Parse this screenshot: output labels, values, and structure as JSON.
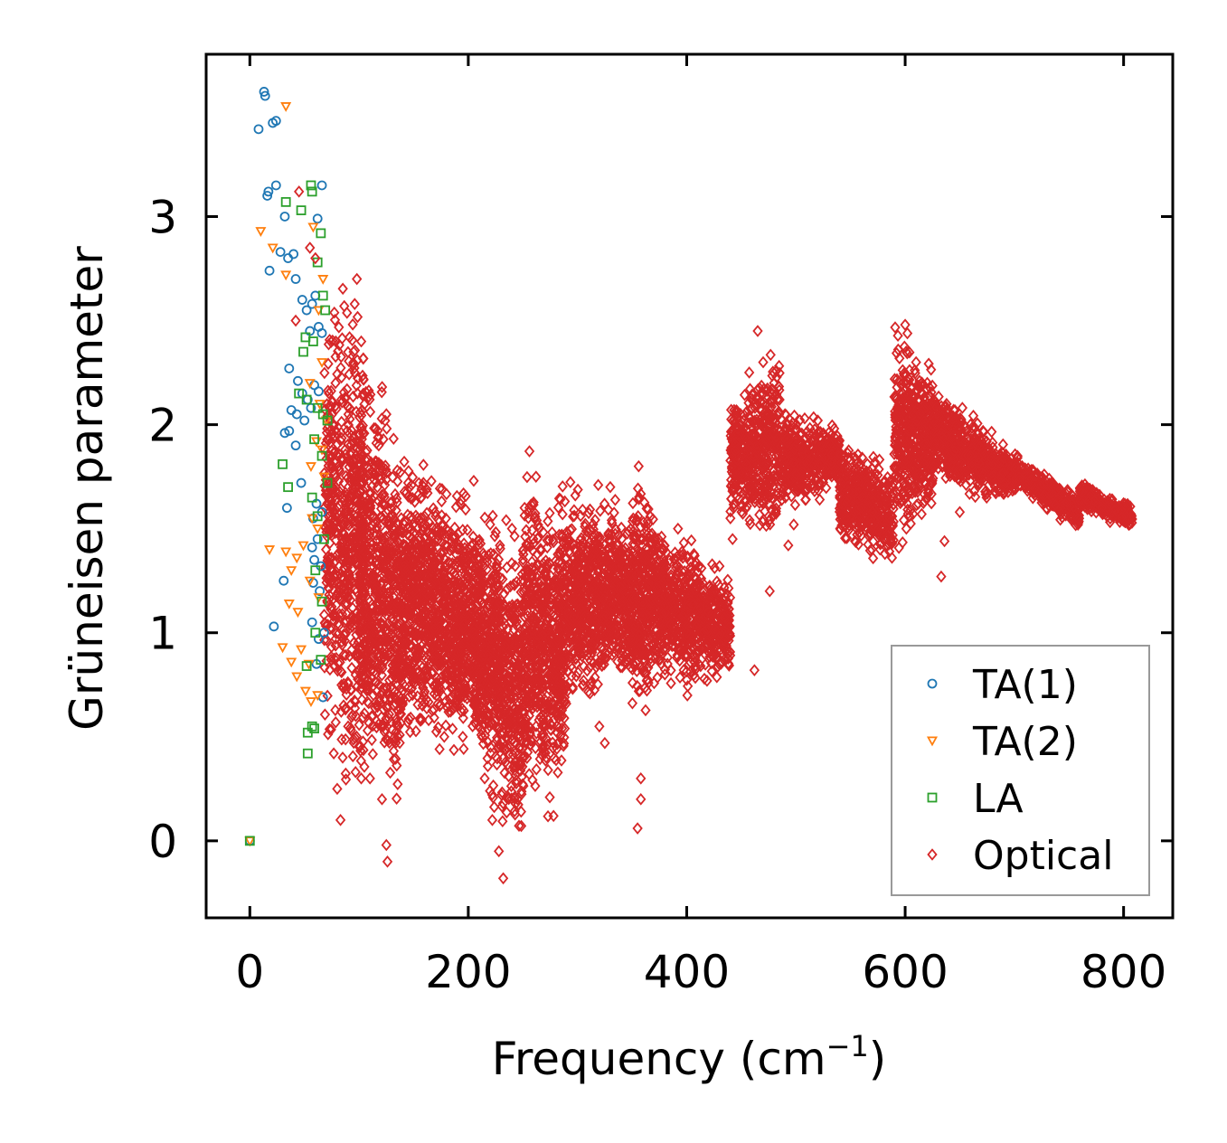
{
  "chart_data": {
    "type": "scatter",
    "title": "",
    "xlabel_text": "Frequency (cm",
    "xlabel_sup": "−1",
    "xlabel_close": ")",
    "ylabel": "Grüneisen parameter",
    "xlim": [
      -40,
      845
    ],
    "ylim": [
      -0.37,
      3.78
    ],
    "xticks": [
      0,
      200,
      400,
      600,
      800
    ],
    "xtick_labels": [
      "0",
      "200",
      "400",
      "600",
      "800"
    ],
    "yticks": [
      0,
      1,
      2,
      3
    ],
    "ytick_labels": [
      "0",
      "1",
      "2",
      "3"
    ],
    "grid": false,
    "legend_position": "bottom-right",
    "series": [
      {
        "name": "TA(1)",
        "color": "#1f77b4",
        "marker": "circle",
        "points": [
          [
            0,
            0
          ],
          [
            8,
            3.42
          ],
          [
            13,
            3.6
          ],
          [
            14,
            3.58
          ],
          [
            21,
            3.45
          ],
          [
            24,
            3.46
          ],
          [
            16,
            3.1
          ],
          [
            17,
            3.12
          ],
          [
            24,
            3.15
          ],
          [
            32,
            3.0
          ],
          [
            62,
            2.99
          ],
          [
            66,
            3.15
          ],
          [
            18,
            2.74
          ],
          [
            28,
            2.83
          ],
          [
            35,
            2.8
          ],
          [
            40,
            2.82
          ],
          [
            42,
            2.7
          ],
          [
            48,
            2.6
          ],
          [
            52,
            2.55
          ],
          [
            57,
            2.58
          ],
          [
            60,
            2.62
          ],
          [
            55,
            2.45
          ],
          [
            63,
            2.47
          ],
          [
            66,
            2.44
          ],
          [
            36,
            2.27
          ],
          [
            44,
            2.21
          ],
          [
            48,
            2.15
          ],
          [
            53,
            2.12
          ],
          [
            59,
            2.19
          ],
          [
            63,
            2.16
          ],
          [
            38,
            2.07
          ],
          [
            43,
            2.05
          ],
          [
            50,
            2.02
          ],
          [
            56,
            2.08
          ],
          [
            32,
            1.96
          ],
          [
            36,
            1.97
          ],
          [
            42,
            1.9
          ],
          [
            47,
            1.72
          ],
          [
            34,
            1.6
          ],
          [
            61,
            1.62
          ],
          [
            66,
            1.58
          ],
          [
            58,
            1.55
          ],
          [
            57,
            1.41
          ],
          [
            62,
            1.45
          ],
          [
            59,
            1.35
          ],
          [
            65,
            1.32
          ],
          [
            31,
            1.25
          ],
          [
            58,
            1.24
          ],
          [
            64,
            1.2
          ],
          [
            22,
            1.03
          ],
          [
            57,
            1.05
          ],
          [
            68,
            1.0
          ],
          [
            63,
            0.97
          ],
          [
            61,
            0.85
          ],
          [
            67,
            0.69
          ]
        ]
      },
      {
        "name": "TA(2)",
        "color": "#ff7f0e",
        "marker": "triangle-down",
        "points": [
          [
            0,
            0
          ],
          [
            33,
            3.53
          ],
          [
            10,
            2.93
          ],
          [
            21,
            2.85
          ],
          [
            33,
            2.72
          ],
          [
            58,
            2.95
          ],
          [
            67,
            2.7
          ],
          [
            63,
            2.55
          ],
          [
            66,
            2.3
          ],
          [
            55,
            2.2
          ],
          [
            64,
            2.1
          ],
          [
            70,
            2.02
          ],
          [
            61,
            1.92
          ],
          [
            66,
            1.88
          ],
          [
            56,
            1.8
          ],
          [
            68,
            1.75
          ],
          [
            57,
            1.55
          ],
          [
            62,
            1.5
          ],
          [
            49,
            1.42
          ],
          [
            18,
            1.4
          ],
          [
            33,
            1.39
          ],
          [
            43,
            1.36
          ],
          [
            38,
            1.3
          ],
          [
            55,
            1.25
          ],
          [
            63,
            1.17
          ],
          [
            36,
            1.14
          ],
          [
            44,
            1.1
          ],
          [
            30,
            0.93
          ],
          [
            47,
            0.92
          ],
          [
            38,
            0.86
          ],
          [
            54,
            0.85
          ],
          [
            43,
            0.79
          ],
          [
            51,
            0.72
          ],
          [
            62,
            0.7
          ],
          [
            56,
            0.67
          ]
        ]
      },
      {
        "name": "LA",
        "color": "#2ca02c",
        "marker": "square",
        "points": [
          [
            0,
            0
          ],
          [
            56,
            3.15
          ],
          [
            57,
            3.12
          ],
          [
            33,
            3.07
          ],
          [
            47,
            3.03
          ],
          [
            65,
            2.92
          ],
          [
            62,
            2.78
          ],
          [
            67,
            2.62
          ],
          [
            69,
            2.55
          ],
          [
            51,
            2.42
          ],
          [
            58,
            2.4
          ],
          [
            49,
            2.35
          ],
          [
            45,
            2.15
          ],
          [
            52,
            2.12
          ],
          [
            62,
            2.08
          ],
          [
            67,
            2.05
          ],
          [
            71,
            2.02
          ],
          [
            59,
            1.93
          ],
          [
            66,
            1.85
          ],
          [
            30,
            1.81
          ],
          [
            35,
            1.7
          ],
          [
            57,
            1.65
          ],
          [
            71,
            1.72
          ],
          [
            62,
            1.56
          ],
          [
            68,
            1.45
          ],
          [
            60,
            1.3
          ],
          [
            66,
            1.15
          ],
          [
            60,
            1.0
          ],
          [
            52,
            0.84
          ],
          [
            65,
            0.87
          ],
          [
            57,
            0.55
          ],
          [
            53,
            0.52
          ],
          [
            59,
            0.54
          ],
          [
            53,
            0.42
          ]
        ]
      },
      {
        "name": "Optical",
        "color": "#d62728",
        "marker": "diamond",
        "points": [
          [
            45,
            3.12
          ],
          [
            55,
            2.85
          ],
          [
            60,
            2.8
          ],
          [
            98,
            2.7
          ],
          [
            96,
            2.58
          ],
          [
            42,
            2.5
          ],
          [
            95,
            2.35
          ],
          [
            102,
            2.4
          ],
          [
            125,
            2.05
          ],
          [
            118,
            1.9
          ],
          [
            135,
            1.78
          ],
          [
            145,
            1.72
          ],
          [
            157,
            1.65
          ],
          [
            176,
            1.69
          ],
          [
            205,
            1.73
          ],
          [
            240,
            1.5
          ],
          [
            262,
            1.75
          ],
          [
            298,
            1.66
          ],
          [
            330,
            1.7
          ],
          [
            356,
            1.8
          ],
          [
            392,
            1.5
          ],
          [
            430,
            1.32
          ],
          [
            465,
            2.45
          ],
          [
            470,
            2.3
          ],
          [
            480,
            2.2
          ],
          [
            485,
            2.12
          ],
          [
            490,
            2.05
          ],
          [
            520,
            2.02
          ],
          [
            545,
            1.8
          ],
          [
            570,
            1.58
          ],
          [
            577,
            1.4
          ],
          [
            600,
            2.48
          ],
          [
            610,
            2.3
          ],
          [
            615,
            2.2
          ],
          [
            640,
            2.0
          ],
          [
            660,
            1.85
          ],
          [
            690,
            1.77
          ],
          [
            730,
            1.63
          ],
          [
            760,
            1.68
          ],
          [
            780,
            1.6
          ],
          [
            805,
            1.52
          ],
          [
            683,
            1.67
          ],
          [
            636,
            1.44
          ],
          [
            650,
            1.58
          ],
          [
            633,
            1.27
          ],
          [
            462,
            0.82
          ],
          [
            442,
            1.45
          ],
          [
            493,
            1.42
          ],
          [
            498,
            1.52
          ],
          [
            476,
            1.2
          ],
          [
            400,
            1.0
          ],
          [
            380,
            0.8
          ],
          [
            355,
            0.06
          ],
          [
            358,
            0.2
          ],
          [
            358,
            0.3
          ],
          [
            320,
            0.55
          ],
          [
            325,
            0.47
          ],
          [
            305,
            0.75
          ],
          [
            286,
            0.6
          ],
          [
            268,
            0.45
          ],
          [
            245,
            0.2
          ],
          [
            232,
            -0.18
          ],
          [
            228,
            -0.05
          ],
          [
            222,
            0.1
          ],
          [
            215,
            0.3
          ],
          [
            195,
            0.5
          ],
          [
            178,
            0.5
          ],
          [
            158,
            0.65
          ],
          [
            140,
            0.72
          ],
          [
            125,
            -0.02
          ],
          [
            126,
            -0.1
          ],
          [
            121,
            0.2
          ],
          [
            110,
            0.3
          ],
          [
            83,
            0.1
          ],
          [
            80,
            0.25
          ],
          [
            85,
            0.4
          ],
          [
            90,
            0.55
          ],
          [
            97,
            0.6
          ],
          [
            102,
            0.3
          ],
          [
            135,
            0.8
          ],
          [
            150,
            1.0
          ],
          [
            170,
            0.9
          ],
          [
            190,
            1.2
          ],
          [
            210,
            1.0
          ],
          [
            250,
            0.9
          ],
          [
            270,
            1.1
          ],
          [
            300,
            1.2
          ],
          [
            330,
            1.3
          ],
          [
            360,
            1.15
          ],
          [
            390,
            1.05
          ],
          [
            420,
            1.1
          ],
          [
            440,
            1.55
          ],
          [
            450,
            1.85
          ],
          [
            500,
            1.9
          ],
          [
            540,
            1.7
          ],
          [
            560,
            1.6
          ],
          [
            580,
            1.5
          ],
          [
            590,
            1.75
          ],
          [
            620,
            2.1
          ]
        ]
      }
    ],
    "optical_clouds": [
      {
        "xmin": 68,
        "xmax": 105,
        "ytop": [
          2.55,
          2.5
        ],
        "ybot": [
          0.5,
          0.35
        ],
        "n": 600
      },
      {
        "xmin": 100,
        "xmax": 140,
        "ytop": [
          2.3,
          1.85
        ],
        "ybot": [
          0.3,
          0.2
        ],
        "n": 700
      },
      {
        "xmin": 140,
        "xmax": 195,
        "ytop": [
          1.8,
          1.6
        ],
        "ybot": [
          0.55,
          0.5
        ],
        "n": 900
      },
      {
        "xmin": 195,
        "xmax": 250,
        "ytop": [
          1.6,
          1.4
        ],
        "ybot": [
          0.5,
          0.0
        ],
        "n": 900
      },
      {
        "xmin": 250,
        "xmax": 290,
        "ytop": [
          1.7,
          1.6
        ],
        "ybot": [
          0.2,
          0.3
        ],
        "n": 700
      },
      {
        "xmin": 290,
        "xmax": 350,
        "ytop": [
          1.65,
          1.55
        ],
        "ybot": [
          0.7,
          0.8
        ],
        "n": 800
      },
      {
        "xmin": 350,
        "xmax": 380,
        "ytop": [
          1.7,
          1.5
        ],
        "ybot": [
          0.6,
          0.85
        ],
        "n": 450
      },
      {
        "xmin": 380,
        "xmax": 440,
        "ytop": [
          1.5,
          1.25
        ],
        "ybot": [
          0.75,
          0.8
        ],
        "n": 600
      },
      {
        "xmin": 440,
        "xmax": 485,
        "ytop": [
          2.1,
          2.35
        ],
        "ybot": [
          1.55,
          1.5
        ],
        "n": 500
      },
      {
        "xmin": 485,
        "xmax": 540,
        "ytop": [
          2.05,
          2.0
        ],
        "ybot": [
          1.6,
          1.7
        ],
        "n": 450
      },
      {
        "xmin": 540,
        "xmax": 590,
        "ytop": [
          1.9,
          1.8
        ],
        "ybot": [
          1.45,
          1.35
        ],
        "n": 450
      },
      {
        "xmin": 590,
        "xmax": 625,
        "ytop": [
          2.45,
          2.25
        ],
        "ybot": [
          1.4,
          1.6
        ],
        "n": 450
      },
      {
        "xmin": 625,
        "xmax": 700,
        "ytop": [
          2.2,
          1.85
        ],
        "ybot": [
          1.7,
          1.65
        ],
        "n": 600
      },
      {
        "xmin": 700,
        "xmax": 760,
        "ytop": [
          1.85,
          1.65
        ],
        "ybot": [
          1.7,
          1.5
        ],
        "n": 350
      },
      {
        "xmin": 760,
        "xmax": 808,
        "ytop": [
          1.72,
          1.6
        ],
        "ybot": [
          1.6,
          1.5
        ],
        "n": 300
      }
    ]
  }
}
